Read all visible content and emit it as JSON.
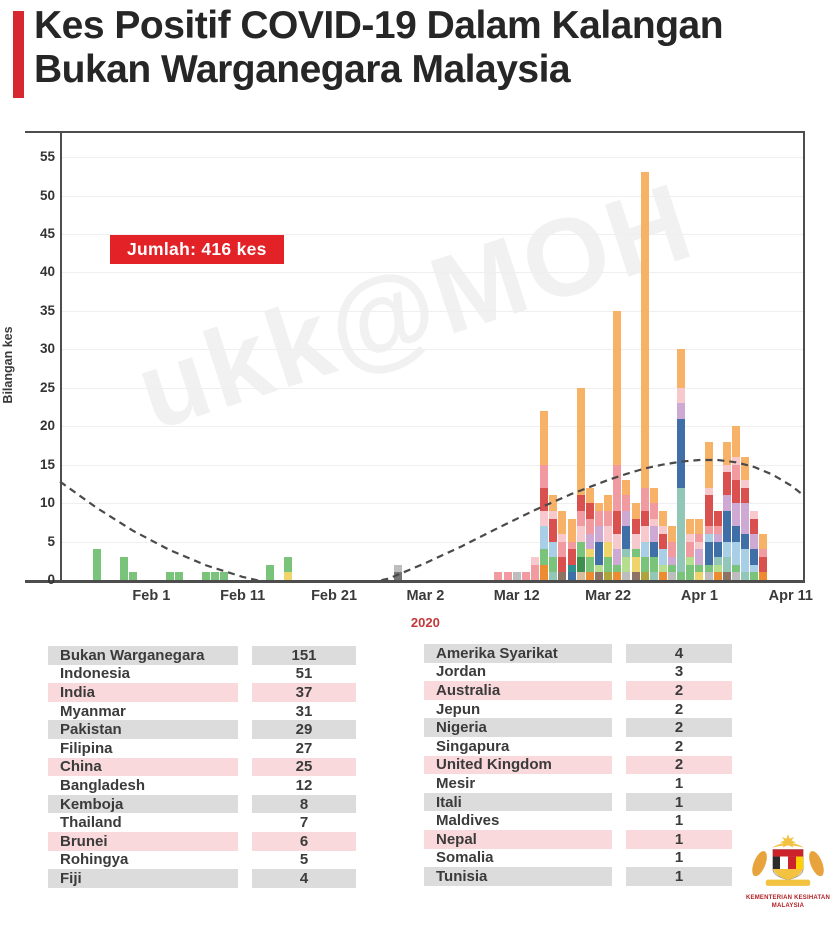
{
  "title": {
    "line1": "Kes Positif COVID-19 Dalam Kalangan",
    "line2": "Bukan Warganegara Malaysia"
  },
  "accent_color": "#D7282F",
  "chart_data": {
    "type": "bar",
    "stacked": true,
    "ylabel": "Bilangan kes",
    "year_label": "2020",
    "ylim": [
      0,
      55
    ],
    "ytick_step": 5,
    "grid": true,
    "badge": "Jumlah: 416 kes",
    "badge_color": "#E32227",
    "watermark": "ukk@MOH",
    "xticks": [
      {
        "day": 10,
        "label": "Feb 1"
      },
      {
        "day": 20,
        "label": "Feb 11"
      },
      {
        "day": 30,
        "label": "Feb 21"
      },
      {
        "day": 40,
        "label": "Mar 2"
      },
      {
        "day": 50,
        "label": "Mar 12"
      },
      {
        "day": 60,
        "label": "Mar 22"
      },
      {
        "day": 70,
        "label": "Apr 1"
      },
      {
        "day": 80,
        "label": "Apr 11"
      }
    ],
    "palette": {
      "or": "#F8B267",
      "dor": "#EC8B2F",
      "sa": "#F19AA0",
      "lp": "#F7C9CD",
      "re": "#D9504F",
      "lb": "#A9CFE6",
      "db": "#3F6FA6",
      "gr": "#79C47A",
      "lg": "#B5DF8E",
      "dg": "#3E8E4E",
      "te": "#92C6B6",
      "dt": "#2E8F8F",
      "pu": "#CDA9D4",
      "ye": "#EFD36B",
      "gy": "#BDBDBD",
      "dgy": "#757575",
      "br": "#8C7364",
      "ol": "#AFA33C",
      "tn": "#D9BC9A"
    },
    "bars": [
      {
        "date": "Jan 26",
        "day": 4,
        "segments": [
          [
            "gr",
            4
          ]
        ]
      },
      {
        "date": "Jan 29",
        "day": 7,
        "segments": [
          [
            "gr",
            3
          ]
        ]
      },
      {
        "date": "Jan 30",
        "day": 8,
        "segments": [
          [
            "gr",
            1
          ]
        ]
      },
      {
        "date": "Feb 3",
        "day": 12,
        "segments": [
          [
            "gr",
            1
          ]
        ]
      },
      {
        "date": "Feb 4",
        "day": 13,
        "segments": [
          [
            "gr",
            1
          ]
        ]
      },
      {
        "date": "Feb 7",
        "day": 16,
        "segments": [
          [
            "gr",
            1
          ]
        ]
      },
      {
        "date": "Feb 8",
        "day": 17,
        "segments": [
          [
            "gr",
            1
          ]
        ]
      },
      {
        "date": "Feb 9",
        "day": 18,
        "segments": [
          [
            "gr",
            1
          ]
        ]
      },
      {
        "date": "Feb 14",
        "day": 23,
        "segments": [
          [
            "gr",
            2
          ]
        ]
      },
      {
        "date": "Feb 16",
        "day": 25,
        "segments": [
          [
            "ye",
            1
          ],
          [
            "gr",
            2
          ]
        ]
      },
      {
        "date": "Feb 28",
        "day": 37,
        "segments": [
          [
            "dgy",
            1
          ],
          [
            "gy",
            1
          ]
        ]
      },
      {
        "date": "Mar 10",
        "day": 48,
        "segments": [
          [
            "sa",
            1
          ]
        ]
      },
      {
        "date": "Mar 11",
        "day": 49,
        "segments": [
          [
            "sa",
            1
          ]
        ]
      },
      {
        "date": "Mar 12",
        "day": 50,
        "segments": [
          [
            "gy",
            1
          ]
        ]
      },
      {
        "date": "Mar 13",
        "day": 51,
        "segments": [
          [
            "sa",
            1
          ]
        ]
      },
      {
        "date": "Mar 14",
        "day": 52,
        "segments": [
          [
            "sa",
            2
          ],
          [
            "lp",
            1
          ]
        ]
      },
      {
        "date": "Mar 15",
        "day": 53,
        "segments": [
          [
            "dor",
            2
          ],
          [
            "gr",
            2
          ],
          [
            "lb",
            3
          ],
          [
            "lp",
            2
          ],
          [
            "re",
            3
          ],
          [
            "sa",
            3
          ],
          [
            "or",
            7
          ]
        ]
      },
      {
        "date": "Mar 16",
        "day": 54,
        "segments": [
          [
            "te",
            1
          ],
          [
            "gr",
            2
          ],
          [
            "lb",
            2
          ],
          [
            "re",
            3
          ],
          [
            "lp",
            1
          ],
          [
            "or",
            2
          ]
        ]
      },
      {
        "date": "Mar 17",
        "day": 55,
        "segments": [
          [
            "br",
            1
          ],
          [
            "re",
            2
          ],
          [
            "sa",
            2
          ],
          [
            "lp",
            1
          ],
          [
            "or",
            3
          ]
        ]
      },
      {
        "date": "Mar 18",
        "day": 56,
        "segments": [
          [
            "db",
            1
          ],
          [
            "dt",
            1
          ],
          [
            "re",
            2
          ],
          [
            "sa",
            1
          ],
          [
            "or",
            3
          ]
        ]
      },
      {
        "date": "Mar 19",
        "day": 57,
        "segments": [
          [
            "tn",
            1
          ],
          [
            "dg",
            2
          ],
          [
            "gr",
            2
          ],
          [
            "lp",
            2
          ],
          [
            "sa",
            2
          ],
          [
            "re",
            2
          ],
          [
            "or",
            14
          ]
        ]
      },
      {
        "date": "Mar 20",
        "day": 58,
        "segments": [
          [
            "dor",
            1
          ],
          [
            "gr",
            2
          ],
          [
            "ye",
            1
          ],
          [
            "pu",
            2
          ],
          [
            "sa",
            2
          ],
          [
            "re",
            2
          ],
          [
            "or",
            2
          ]
        ]
      },
      {
        "date": "Mar 21",
        "day": 59,
        "segments": [
          [
            "br",
            1
          ],
          [
            "lg",
            1
          ],
          [
            "db",
            3
          ],
          [
            "pu",
            2
          ],
          [
            "sa",
            2
          ],
          [
            "or",
            1
          ]
        ]
      },
      {
        "date": "Mar 22",
        "day": 60,
        "segments": [
          [
            "ol",
            1
          ],
          [
            "gr",
            2
          ],
          [
            "ye",
            2
          ],
          [
            "lp",
            2
          ],
          [
            "sa",
            2
          ],
          [
            "or",
            2
          ]
        ]
      },
      {
        "date": "Mar 23",
        "day": 61,
        "segments": [
          [
            "dor",
            1
          ],
          [
            "gr",
            1
          ],
          [
            "pu",
            2
          ],
          [
            "lp",
            2
          ],
          [
            "re",
            3
          ],
          [
            "sa",
            6
          ],
          [
            "or",
            20
          ]
        ]
      },
      {
        "date": "Mar 24",
        "day": 62,
        "segments": [
          [
            "gy",
            1
          ],
          [
            "lg",
            2
          ],
          [
            "te",
            1
          ],
          [
            "db",
            3
          ],
          [
            "pu",
            2
          ],
          [
            "sa",
            2
          ],
          [
            "or",
            2
          ]
        ]
      },
      {
        "date": "Mar 25",
        "day": 63,
        "segments": [
          [
            "br",
            1
          ],
          [
            "ye",
            2
          ],
          [
            "gr",
            1
          ],
          [
            "lp",
            2
          ],
          [
            "re",
            2
          ],
          [
            "or",
            2
          ]
        ]
      },
      {
        "date": "Mar 26",
        "day": 64,
        "segments": [
          [
            "ol",
            1
          ],
          [
            "gr",
            2
          ],
          [
            "lb",
            2
          ],
          [
            "lp",
            2
          ],
          [
            "re",
            2
          ],
          [
            "sa",
            3
          ],
          [
            "or",
            41
          ]
        ]
      },
      {
        "date": "Mar 27",
        "day": 65,
        "segments": [
          [
            "te",
            1
          ],
          [
            "gr",
            2
          ],
          [
            "db",
            2
          ],
          [
            "pu",
            2
          ],
          [
            "lp",
            1
          ],
          [
            "sa",
            2
          ],
          [
            "or",
            2
          ]
        ]
      },
      {
        "date": "Mar 28",
        "day": 66,
        "segments": [
          [
            "dor",
            1
          ],
          [
            "lg",
            1
          ],
          [
            "lb",
            2
          ],
          [
            "re",
            2
          ],
          [
            "lp",
            1
          ],
          [
            "or",
            2
          ]
        ]
      },
      {
        "date": "Mar 29",
        "day": 67,
        "segments": [
          [
            "gy",
            1
          ],
          [
            "gr",
            1
          ],
          [
            "pu",
            1
          ],
          [
            "sa",
            2
          ],
          [
            "or",
            2
          ]
        ]
      },
      {
        "date": "Mar 30",
        "day": 68,
        "segments": [
          [
            "gr",
            1
          ],
          [
            "te",
            11
          ],
          [
            "db",
            9
          ],
          [
            "pu",
            2
          ],
          [
            "lp",
            2
          ],
          [
            "or",
            5
          ]
        ]
      },
      {
        "date": "Mar 31",
        "day": 69,
        "segments": [
          [
            "gr",
            2
          ],
          [
            "lg",
            1
          ],
          [
            "sa",
            2
          ],
          [
            "lp",
            1
          ],
          [
            "or",
            2
          ]
        ]
      },
      {
        "date": "Apr 1",
        "day": 70,
        "segments": [
          [
            "ye",
            1
          ],
          [
            "gr",
            1
          ],
          [
            "pu",
            2
          ],
          [
            "lp",
            1
          ],
          [
            "sa",
            1
          ],
          [
            "or",
            2
          ]
        ]
      },
      {
        "date": "Apr 2",
        "day": 71,
        "segments": [
          [
            "gy",
            1
          ],
          [
            "gr",
            1
          ],
          [
            "db",
            3
          ],
          [
            "lb",
            1
          ],
          [
            "sa",
            1
          ],
          [
            "re",
            4
          ],
          [
            "lp",
            1
          ],
          [
            "or",
            6
          ]
        ]
      },
      {
        "date": "Apr 3",
        "day": 72,
        "segments": [
          [
            "dor",
            1
          ],
          [
            "lg",
            1
          ],
          [
            "te",
            1
          ],
          [
            "db",
            2
          ],
          [
            "pu",
            1
          ],
          [
            "sa",
            1
          ],
          [
            "re",
            2
          ]
        ]
      },
      {
        "date": "Apr 4",
        "day": 73,
        "segments": [
          [
            "br",
            1
          ],
          [
            "te",
            2
          ],
          [
            "lb",
            2
          ],
          [
            "db",
            4
          ],
          [
            "pu",
            2
          ],
          [
            "re",
            3
          ],
          [
            "lp",
            1
          ],
          [
            "or",
            3
          ]
        ]
      },
      {
        "date": "Apr 5",
        "day": 74,
        "segments": [
          [
            "gy",
            1
          ],
          [
            "gr",
            1
          ],
          [
            "lb",
            3
          ],
          [
            "db",
            2
          ],
          [
            "pu",
            3
          ],
          [
            "re",
            3
          ],
          [
            "sa",
            2
          ],
          [
            "lp",
            1
          ],
          [
            "or",
            4
          ]
        ]
      },
      {
        "date": "Apr 6",
        "day": 75,
        "segments": [
          [
            "te",
            1
          ],
          [
            "lb",
            3
          ],
          [
            "db",
            2
          ],
          [
            "pu",
            4
          ],
          [
            "re",
            2
          ],
          [
            "lp",
            1
          ],
          [
            "or",
            3
          ]
        ]
      },
      {
        "date": "Apr 7",
        "day": 76,
        "segments": [
          [
            "gr",
            1
          ],
          [
            "lb",
            1
          ],
          [
            "db",
            2
          ],
          [
            "pu",
            2
          ],
          [
            "re",
            2
          ],
          [
            "lp",
            1
          ]
        ]
      },
      {
        "date": "Apr 8",
        "day": 77,
        "segments": [
          [
            "dor",
            1
          ],
          [
            "re",
            2
          ],
          [
            "sa",
            1
          ],
          [
            "or",
            2
          ]
        ]
      }
    ],
    "trend": {
      "style": "dashed",
      "color": "#4a4a4a",
      "points": [
        [
          0,
          12.8
        ],
        [
          4,
          9.4
        ],
        [
          8,
          6.4
        ],
        [
          12,
          3.9
        ],
        [
          16,
          1.9
        ],
        [
          20,
          0.4
        ],
        [
          24,
          -0.7
        ],
        [
          28,
          -1.2
        ],
        [
          32,
          -0.9
        ],
        [
          36,
          0.2
        ],
        [
          40,
          2.2
        ],
        [
          44,
          4.4
        ],
        [
          48,
          6.8
        ],
        [
          52,
          9.1
        ],
        [
          56,
          11.2
        ],
        [
          60,
          13.0
        ],
        [
          62,
          13.8
        ],
        [
          64,
          14.5
        ],
        [
          66,
          15.0
        ],
        [
          68,
          15.4
        ],
        [
          70,
          15.6
        ],
        [
          72,
          15.6
        ],
        [
          74,
          15.3
        ],
        [
          76,
          14.7
        ],
        [
          78,
          13.7
        ],
        [
          80,
          12.3
        ],
        [
          81.2,
          11.2
        ]
      ]
    }
  },
  "tables": {
    "left": {
      "rows": [
        [
          "Bukan Warganegara",
          "151"
        ],
        [
          "Indonesia",
          "51"
        ],
        [
          "India",
          "37"
        ],
        [
          "Myanmar",
          "31"
        ],
        [
          "Pakistan",
          "29"
        ],
        [
          "Filipina",
          "27"
        ],
        [
          "China",
          "25"
        ],
        [
          "Bangladesh",
          "12"
        ],
        [
          "Kemboja",
          "8"
        ],
        [
          "Thailand",
          "7"
        ],
        [
          "Brunei",
          "6"
        ],
        [
          "Rohingya",
          "5"
        ],
        [
          "Fiji",
          "4"
        ]
      ]
    },
    "right": {
      "rows": [
        [
          "Amerika Syarikat",
          "4"
        ],
        [
          "Jordan",
          "3"
        ],
        [
          "Australia",
          "2"
        ],
        [
          "Jepun",
          "2"
        ],
        [
          "Nigeria",
          "2"
        ],
        [
          "Singapura",
          "2"
        ],
        [
          "United Kingdom",
          "2"
        ],
        [
          "Mesir",
          "1"
        ],
        [
          "Itali",
          "1"
        ],
        [
          "Maldives",
          "1"
        ],
        [
          "Nepal",
          "1"
        ],
        [
          "Somalia",
          "1"
        ],
        [
          "Tunisia",
          "1"
        ]
      ]
    },
    "row_colors": {
      "gray": "#DCDCDC",
      "pink": "#FAD9DC",
      "white": "#FFFFFF"
    }
  },
  "logo": {
    "caption_line1": "KEMENTERIAN KESIHATAN",
    "caption_line2": "MALAYSIA"
  }
}
